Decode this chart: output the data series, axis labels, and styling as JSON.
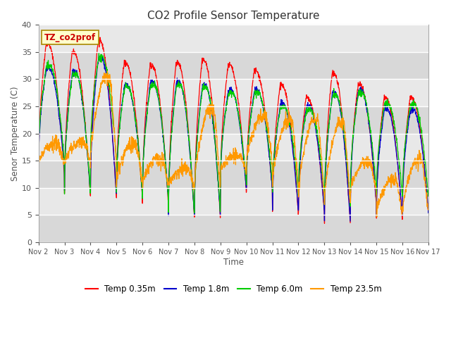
{
  "title": "CO2 Profile Sensor Temperature",
  "xlabel": "Time",
  "ylabel": "Senor Temperature (C)",
  "ylim": [
    0,
    40
  ],
  "xlim": [
    0,
    15
  ],
  "background_color": "#e8e8e8",
  "plot_bg": "#e8e8e8",
  "grid_color": "#ffffff",
  "series": [
    {
      "label": "Temp 0.35m",
      "color": "#ff0000"
    },
    {
      "label": "Temp 1.8m",
      "color": "#0000cc"
    },
    {
      "label": "Temp 6.0m",
      "color": "#00cc00"
    },
    {
      "label": "Temp 23.5m",
      "color": "#ff9900"
    }
  ],
  "annotation_text": "TZ_co2prof",
  "annotation_color": "#cc0000",
  "annotation_bg": "#ffffcc",
  "annotation_border": "#aa8800",
  "x_tick_labels": [
    "Nov 2",
    "Nov 3",
    "Nov 4",
    "Nov 5",
    "Nov 6",
    "Nov 7",
    "Nov 8",
    "Nov 9",
    "Nov 10",
    "Nov 11",
    "Nov 12",
    "Nov 13",
    "Nov 14",
    "Nov 15",
    "Nov 16",
    "Nov 17"
  ],
  "num_days": 15,
  "pts_per_day": 120,
  "day_peaks_035": [
    36.5,
    35.0,
    37.0,
    33.0,
    32.5,
    33.0,
    33.5,
    32.5,
    31.5,
    28.8,
    26.5,
    31.0,
    29.0,
    26.5,
    26.5
  ],
  "day_mins_035": [
    12.5,
    8.8,
    8.8,
    8.5,
    7.5,
    4.8,
    4.5,
    9.5,
    9.5,
    5.5,
    5.5,
    3.5,
    7.0,
    4.5,
    5.5
  ],
  "day_peaks_18": [
    32.0,
    31.5,
    34.0,
    28.8,
    29.5,
    29.5,
    29.0,
    28.0,
    28.0,
    25.5,
    25.0,
    27.5,
    28.0,
    24.5,
    24.5
  ],
  "day_mins_18": [
    13.5,
    9.2,
    9.0,
    9.0,
    8.0,
    5.0,
    5.0,
    9.8,
    9.8,
    5.8,
    5.8,
    3.8,
    7.2,
    4.8,
    5.8
  ],
  "day_peaks_60": [
    32.5,
    31.0,
    34.0,
    28.5,
    29.0,
    29.0,
    28.5,
    27.5,
    27.5,
    25.0,
    24.5,
    27.0,
    27.5,
    25.5,
    25.5
  ],
  "day_mins_60": [
    15.0,
    9.5,
    15.5,
    9.0,
    8.0,
    5.5,
    5.5,
    11.0,
    11.0,
    9.0,
    9.0,
    7.0,
    9.5,
    8.5,
    8.5
  ],
  "day_peaks_235": [
    18.0,
    18.5,
    30.5,
    18.0,
    15.5,
    13.5,
    24.5,
    16.0,
    23.0,
    22.5,
    22.5,
    22.0,
    15.0,
    11.5,
    15.0
  ],
  "day_mins_235": [
    14.5,
    14.5,
    14.5,
    11.0,
    10.5,
    10.0,
    10.0,
    13.0,
    14.5,
    10.5,
    8.0,
    7.0,
    9.0,
    5.0,
    5.5
  ]
}
